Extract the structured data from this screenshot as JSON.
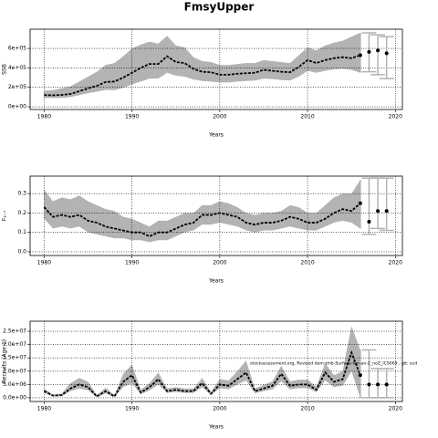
{
  "title": "FmsyUpper",
  "chart_data": [
    {
      "type": "line",
      "ylabel": "SSB",
      "xlabel": "Years",
      "x": [
        1980,
        1981,
        1982,
        1983,
        1984,
        1985,
        1986,
        1987,
        1988,
        1989,
        1990,
        1991,
        1992,
        1993,
        1994,
        1995,
        1996,
        1997,
        1998,
        1999,
        2000,
        2001,
        2002,
        2003,
        2004,
        2005,
        2006,
        2007,
        2008,
        2009,
        2010,
        2011,
        2012,
        2013,
        2014,
        2015,
        2016
      ],
      "values": [
        120000,
        118000,
        122000,
        132000,
        160000,
        190000,
        215000,
        255000,
        260000,
        300000,
        350000,
        400000,
        440000,
        440000,
        520000,
        460000,
        450000,
        390000,
        360000,
        355000,
        330000,
        330000,
        340000,
        345000,
        350000,
        380000,
        370000,
        360000,
        355000,
        410000,
        480000,
        450000,
        480000,
        500000,
        510000,
        500000,
        530000
      ],
      "lower": [
        90000,
        90000,
        92000,
        100000,
        120000,
        140000,
        155000,
        175000,
        170000,
        195000,
        230000,
        260000,
        290000,
        290000,
        350000,
        320000,
        310000,
        280000,
        265000,
        260000,
        250000,
        250000,
        260000,
        265000,
        270000,
        290000,
        285000,
        275000,
        270000,
        310000,
        370000,
        350000,
        370000,
        385000,
        390000,
        380000,
        350000
      ],
      "upper": [
        165000,
        170000,
        190000,
        210000,
        260000,
        310000,
        360000,
        430000,
        450000,
        520000,
        600000,
        640000,
        670000,
        650000,
        730000,
        630000,
        610000,
        510000,
        470000,
        460000,
        430000,
        430000,
        440000,
        450000,
        450000,
        480000,
        470000,
        460000,
        450000,
        530000,
        610000,
        580000,
        630000,
        660000,
        680000,
        720000,
        760000
      ],
      "projection": {
        "x": [
          2017,
          2018,
          2019
        ],
        "values": [
          565000,
          580000,
          550000
        ],
        "lower": [
          360000,
          330000,
          290000
        ],
        "upper": [
          760000,
          740000,
          720000
        ]
      },
      "xlim": [
        1978.4,
        2020.8
      ],
      "xticks": [
        1980,
        1990,
        2000,
        2010,
        2020
      ],
      "ylim": [
        -28000,
        798000
      ],
      "yticks": [
        {
          "value": 0,
          "label": "0e+00"
        },
        {
          "value": 200000,
          "label": "2e+05"
        },
        {
          "value": 400000,
          "label": "4e+05"
        },
        {
          "value": 600000,
          "label": "6e+05"
        }
      ],
      "grid": true,
      "color": "#000000",
      "band_color": "#b3b3b3",
      "errorbar_color": "#b3b3b3"
    },
    {
      "type": "line",
      "ylabel": "F₃₋₇",
      "xlabel": "Years",
      "x": [
        1980,
        1981,
        1982,
        1983,
        1984,
        1985,
        1986,
        1987,
        1988,
        1989,
        1990,
        1991,
        1992,
        1993,
        1994,
        1995,
        1996,
        1997,
        1998,
        1999,
        2000,
        2001,
        2002,
        2003,
        2004,
        2005,
        2006,
        2007,
        2008,
        2009,
        2010,
        2011,
        2012,
        2013,
        2014,
        2015,
        2016
      ],
      "values": [
        0.23,
        0.18,
        0.19,
        0.18,
        0.19,
        0.16,
        0.15,
        0.13,
        0.12,
        0.11,
        0.1,
        0.1,
        0.08,
        0.1,
        0.1,
        0.12,
        0.14,
        0.15,
        0.19,
        0.19,
        0.2,
        0.19,
        0.18,
        0.15,
        0.14,
        0.15,
        0.15,
        0.16,
        0.18,
        0.17,
        0.15,
        0.15,
        0.17,
        0.2,
        0.22,
        0.21,
        0.25
      ],
      "lower": [
        0.17,
        0.12,
        0.13,
        0.12,
        0.13,
        0.1,
        0.09,
        0.08,
        0.07,
        0.07,
        0.06,
        0.06,
        0.05,
        0.06,
        0.06,
        0.08,
        0.1,
        0.11,
        0.14,
        0.14,
        0.15,
        0.14,
        0.13,
        0.11,
        0.1,
        0.11,
        0.11,
        0.12,
        0.13,
        0.12,
        0.11,
        0.11,
        0.13,
        0.15,
        0.16,
        0.15,
        0.12
      ],
      "upper": [
        0.32,
        0.26,
        0.28,
        0.27,
        0.29,
        0.26,
        0.24,
        0.22,
        0.21,
        0.18,
        0.17,
        0.15,
        0.13,
        0.16,
        0.16,
        0.18,
        0.2,
        0.2,
        0.24,
        0.24,
        0.26,
        0.25,
        0.23,
        0.2,
        0.19,
        0.2,
        0.2,
        0.21,
        0.24,
        0.23,
        0.2,
        0.2,
        0.24,
        0.28,
        0.3,
        0.3,
        0.37
      ],
      "projection": {
        "x": [
          2017,
          2018,
          2019
        ],
        "values": [
          0.155,
          0.21,
          0.21
        ],
        "lower": [
          0.09,
          0.12,
          0.11
        ],
        "upper": [
          0.38,
          0.38,
          0.38
        ]
      },
      "xlim": [
        1978.4,
        2020.8
      ],
      "xticks": [
        1980,
        1990,
        2000,
        2010,
        2020
      ],
      "ylim": [
        -0.019,
        0.39
      ],
      "yticks": [
        {
          "value": 0,
          "label": "0.0"
        },
        0.1,
        0.2,
        0.3
      ],
      "grid": true,
      "color": "#000000",
      "band_color": "#b3b3b3",
      "errorbar_color": "#b3b3b3"
    },
    {
      "type": "line",
      "ylabel": "Recruits (Age 1)",
      "xlabel": "Years",
      "annotation": "stockassessment.org, Revised dem-tmb-Surface-her-an-2_noZ_ICS069 , git: ecd",
      "x": [
        1980,
        1981,
        1982,
        1983,
        1984,
        1985,
        1986,
        1987,
        1988,
        1989,
        1990,
        1991,
        1992,
        1993,
        1994,
        1995,
        1996,
        1997,
        1998,
        1999,
        2000,
        2001,
        2002,
        2003,
        2004,
        2005,
        2006,
        2007,
        2008,
        2009,
        2010,
        2011,
        2012,
        2013,
        2014,
        2015,
        2016
      ],
      "values": [
        2500000,
        800000,
        1000000,
        3500000,
        5000000,
        4000000,
        500000,
        2500000,
        500000,
        6000000,
        8500000,
        2000000,
        4000000,
        7000000,
        2500000,
        3000000,
        2500000,
        2500000,
        5500000,
        1500000,
        5000000,
        4500000,
        7000000,
        9500000,
        2500000,
        3500000,
        4500000,
        9000000,
        4500000,
        5000000,
        5000000,
        3000000,
        9500000,
        6000000,
        7000000,
        17000000,
        8500000
      ],
      "lower": [
        1800000,
        500000,
        600000,
        2500000,
        3500000,
        2800000,
        200000,
        1700000,
        200000,
        4000000,
        5500000,
        1300000,
        2800000,
        5000000,
        1800000,
        2200000,
        1800000,
        1800000,
        4000000,
        1000000,
        3600000,
        3200000,
        5000000,
        6500000,
        1700000,
        2500000,
        3200000,
        6200000,
        3200000,
        3600000,
        3600000,
        2100000,
        6500000,
        4000000,
        4500000,
        10000000,
        0
      ],
      "upper": [
        3500000,
        1200000,
        1600000,
        5500000,
        7500000,
        6000000,
        1000000,
        3800000,
        1000000,
        9000000,
        12500000,
        3000000,
        5500000,
        9500000,
        3500000,
        4000000,
        3500000,
        3500000,
        7500000,
        2300000,
        7000000,
        6500000,
        10000000,
        14000000,
        3500000,
        4800000,
        6200000,
        12000000,
        6200000,
        6800000,
        6800000,
        4200000,
        13000000,
        8500000,
        10000000,
        27000000,
        18000000
      ],
      "projection": {
        "x": [
          2017,
          2018,
          2019
        ],
        "values": [
          5000000,
          5000000,
          5000000
        ],
        "lower": [
          0,
          0,
          0
        ],
        "upper": [
          18000000,
          11000000,
          11000000
        ]
      },
      "xlim": [
        1978.4,
        2020.8
      ],
      "xticks": [
        1980,
        1990,
        2000,
        2010,
        2020
      ],
      "ylim": [
        -1400000,
        28800000
      ],
      "yticks": [
        {
          "value": 0,
          "label": "0.0e+00"
        },
        {
          "value": 5000000,
          "label": "5.0e+06"
        },
        {
          "value": 10000000,
          "label": "1.0e+07"
        },
        {
          "value": 15000000,
          "label": "1.5e+07"
        },
        {
          "value": 20000000,
          "label": "2.0e+07"
        },
        {
          "value": 25000000,
          "label": "2.5e+07"
        }
      ],
      "grid": true,
      "color": "#000000",
      "band_color": "#b3b3b3",
      "errorbar_color": "#b3b3b3"
    }
  ]
}
